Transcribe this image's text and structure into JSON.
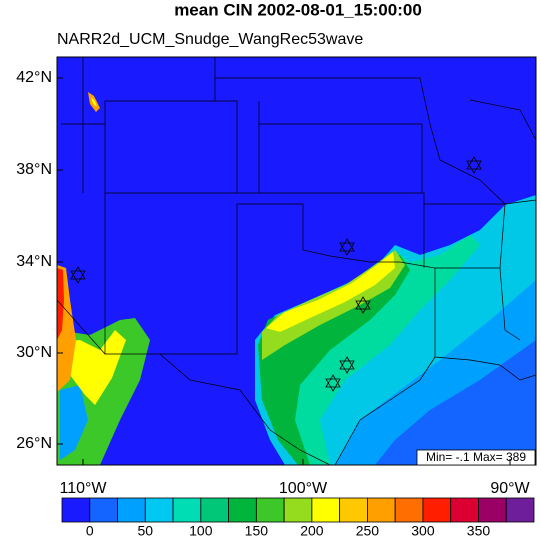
{
  "title": "mean CIN 2002-08-01_15:00:00",
  "subtitle": "NARR2d_UCM_Snudge_WangRec53wave",
  "lat_labels": [
    "42°N",
    "38°N",
    "34°N",
    "30°N",
    "26°N"
  ],
  "lon_labels": [
    "110°W",
    "100°W",
    "90°W"
  ],
  "stats": "Min= -.1 Max= 389",
  "colorbar": {
    "colors": [
      "#1a1aff",
      "#1464ff",
      "#00a0ff",
      "#00c8f0",
      "#00dcb4",
      "#00c878",
      "#00b43c",
      "#3cc828",
      "#96dc1e",
      "#ffff00",
      "#ffc800",
      "#ffa000",
      "#ff6e00",
      "#ff1e00",
      "#dc0032",
      "#9b0064",
      "#6e1e9b"
    ],
    "labels": [
      0,
      50,
      100,
      150,
      200,
      250,
      300,
      350
    ]
  }
}
